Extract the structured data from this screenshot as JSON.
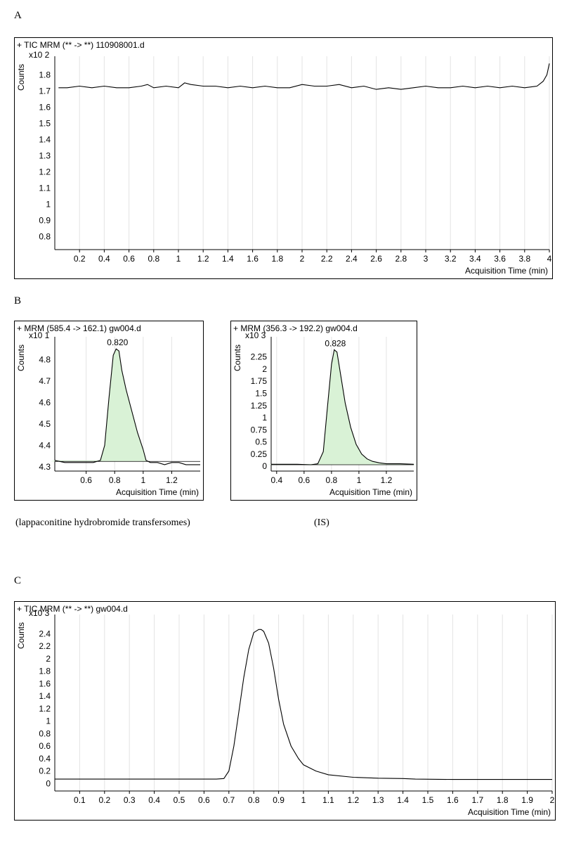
{
  "panels": {
    "A": {
      "letter": "A"
    },
    "B": {
      "letter": "B",
      "caption_left": "(lappaconitine hydrobromide transfersomes)",
      "caption_right": "(IS)"
    },
    "C": {
      "letter": "C"
    }
  },
  "chart_data": [
    {
      "id": "A",
      "type": "line",
      "title": "+ TIC MRM (** -> **) 110908001.d",
      "ylabel": "Counts",
      "yscale_label": "x10 2",
      "xlabel": "Acquisition Time (min)",
      "xlim": [
        0,
        4.0
      ],
      "ylim": [
        0.72,
        1.88
      ],
      "xticks": [
        0.2,
        0.4,
        0.6,
        0.8,
        1,
        1.2,
        1.4,
        1.6,
        1.8,
        2,
        2.2,
        2.4,
        2.6,
        2.8,
        3,
        3.2,
        3.4,
        3.6,
        3.8,
        4
      ],
      "xtick_labels": [
        "0.2",
        "0.4",
        "0.6",
        "0.8",
        "1",
        "1.2",
        "1.4",
        "1.6",
        "1.8",
        "2",
        "2.2",
        "2.4",
        "2.6",
        "2.8",
        "3",
        "3.2",
        "3.4",
        "3.6",
        "3.8",
        "4"
      ],
      "yticks": [
        0.8,
        0.9,
        1,
        1.1,
        1.2,
        1.3,
        1.4,
        1.5,
        1.6,
        1.7,
        1.8
      ],
      "ytick_labels": [
        "0.8",
        "0.9",
        "1",
        "1.1",
        "1.2",
        "1.3",
        "1.4",
        "1.5",
        "1.6",
        "1.7",
        "1.8"
      ],
      "grid": true,
      "x": [
        0.03,
        0.1,
        0.2,
        0.3,
        0.4,
        0.5,
        0.6,
        0.7,
        0.75,
        0.8,
        0.9,
        1.0,
        1.05,
        1.1,
        1.2,
        1.3,
        1.4,
        1.5,
        1.6,
        1.7,
        1.8,
        1.9,
        2.0,
        2.1,
        2.2,
        2.3,
        2.4,
        2.5,
        2.6,
        2.7,
        2.8,
        2.9,
        3.0,
        3.1,
        3.2,
        3.3,
        3.4,
        3.5,
        3.6,
        3.7,
        3.8,
        3.9,
        3.95,
        3.98,
        4.0
      ],
      "values": [
        1.72,
        1.72,
        1.73,
        1.72,
        1.73,
        1.72,
        1.72,
        1.73,
        1.74,
        1.72,
        1.73,
        1.72,
        1.75,
        1.74,
        1.73,
        1.73,
        1.72,
        1.73,
        1.72,
        1.73,
        1.72,
        1.72,
        1.74,
        1.73,
        1.73,
        1.74,
        1.72,
        1.73,
        1.71,
        1.72,
        1.71,
        1.72,
        1.73,
        1.72,
        1.72,
        1.73,
        1.72,
        1.73,
        1.72,
        1.73,
        1.72,
        1.73,
        1.76,
        1.8,
        1.87
      ]
    },
    {
      "id": "B1",
      "type": "area",
      "title": "+ MRM (585.4 -> 162.1) gw004.d",
      "ylabel": "Counts",
      "yscale_label": "x10 1",
      "xlabel": "Acquisition Time (min)",
      "xlim": [
        0.38,
        1.4
      ],
      "ylim": [
        4.28,
        4.88
      ],
      "xticks": [
        0.6,
        0.8,
        1,
        1.2
      ],
      "xtick_labels": [
        "0.6",
        "0.8",
        "1",
        "1.2"
      ],
      "yticks": [
        4.3,
        4.4,
        4.5,
        4.6,
        4.7,
        4.8
      ],
      "ytick_labels": [
        "4.3",
        "4.4",
        "4.5",
        "4.6",
        "4.7",
        "4.8"
      ],
      "grid": true,
      "peak_label": "0.820",
      "peak_x": 0.82,
      "peak_y": 4.85,
      "baseline": 4.325,
      "x": [
        0.38,
        0.45,
        0.55,
        0.65,
        0.7,
        0.73,
        0.76,
        0.79,
        0.81,
        0.83,
        0.85,
        0.88,
        0.92,
        0.96,
        1.0,
        1.02,
        1.05,
        1.1,
        1.15,
        1.2,
        1.25,
        1.3,
        1.35,
        1.4
      ],
      "values": [
        4.33,
        4.32,
        4.32,
        4.32,
        4.33,
        4.4,
        4.62,
        4.82,
        4.85,
        4.84,
        4.75,
        4.66,
        4.56,
        4.46,
        4.38,
        4.33,
        4.32,
        4.32,
        4.31,
        4.32,
        4.32,
        4.31,
        4.31,
        4.31
      ]
    },
    {
      "id": "B2",
      "type": "area",
      "title": "+ MRM (356.3 -> 192.2) gw004.d",
      "ylabel": "Counts",
      "yscale_label": "x10 3",
      "xlabel": "Acquisition Time (min)",
      "xlim": [
        0.36,
        1.4
      ],
      "ylim": [
        -0.1,
        2.55
      ],
      "xticks": [
        0.4,
        0.6,
        0.8,
        1,
        1.2
      ],
      "xtick_labels": [
        "0.4",
        "0.6",
        "0.8",
        "1",
        "1.2"
      ],
      "yticks": [
        0,
        0.25,
        0.5,
        0.75,
        1,
        1.25,
        1.5,
        1.75,
        2,
        2.25
      ],
      "ytick_labels": [
        "0",
        "0.25",
        "0.5",
        "0.75",
        "1",
        "1.25",
        "1.5",
        "1.75",
        "2",
        "2.25"
      ],
      "grid": true,
      "peak_label": "0.828",
      "peak_x": 0.828,
      "peak_y": 2.4,
      "baseline": 0.03,
      "x": [
        0.36,
        0.45,
        0.55,
        0.65,
        0.7,
        0.74,
        0.77,
        0.8,
        0.82,
        0.84,
        0.86,
        0.9,
        0.94,
        0.98,
        1.02,
        1.06,
        1.1,
        1.15,
        1.2,
        1.3,
        1.4
      ],
      "values": [
        0.04,
        0.04,
        0.04,
        0.03,
        0.05,
        0.3,
        1.2,
        2.1,
        2.4,
        2.35,
        2.0,
        1.3,
        0.8,
        0.45,
        0.25,
        0.15,
        0.1,
        0.07,
        0.05,
        0.05,
        0.04
      ]
    },
    {
      "id": "C",
      "type": "line",
      "title": "+ TIC MRM (** -> **) gw004.d",
      "ylabel": "Counts",
      "yscale_label": "x10 3",
      "xlabel": "Acquisition Time (min)",
      "xlim": [
        0,
        2.0
      ],
      "ylim": [
        -0.12,
        2.62
      ],
      "xticks": [
        0.1,
        0.2,
        0.3,
        0.4,
        0.5,
        0.6,
        0.7,
        0.8,
        0.9,
        1,
        1.1,
        1.2,
        1.3,
        1.4,
        1.5,
        1.6,
        1.7,
        1.8,
        1.9,
        2
      ],
      "xtick_labels": [
        "0.1",
        "0.2",
        "0.3",
        "0.4",
        "0.5",
        "0.6",
        "0.7",
        "0.8",
        "0.9",
        "1",
        "1.1",
        "1.2",
        "1.3",
        "1.4",
        "1.5",
        "1.6",
        "1.7",
        "1.8",
        "1.9",
        "2"
      ],
      "yticks": [
        0,
        0.2,
        0.4,
        0.6,
        0.8,
        1,
        1.2,
        1.4,
        1.6,
        1.8,
        2,
        2.2,
        2.4
      ],
      "ytick_labels": [
        "0",
        "0.2",
        "0.4",
        "0.6",
        "0.8",
        "1",
        "1.2",
        "1.4",
        "1.6",
        "1.8",
        "2",
        "2.2",
        "2.4"
      ],
      "grid": true,
      "x": [
        0.0,
        0.1,
        0.3,
        0.5,
        0.65,
        0.68,
        0.7,
        0.72,
        0.74,
        0.76,
        0.78,
        0.8,
        0.82,
        0.83,
        0.84,
        0.86,
        0.88,
        0.9,
        0.92,
        0.95,
        0.98,
        1.0,
        1.05,
        1.1,
        1.2,
        1.3,
        1.4,
        1.45,
        1.6,
        1.8,
        2.0
      ],
      "values": [
        0.07,
        0.07,
        0.07,
        0.07,
        0.07,
        0.08,
        0.2,
        0.6,
        1.15,
        1.7,
        2.15,
        2.42,
        2.47,
        2.47,
        2.44,
        2.25,
        1.85,
        1.35,
        0.95,
        0.6,
        0.4,
        0.3,
        0.2,
        0.14,
        0.1,
        0.085,
        0.08,
        0.07,
        0.065,
        0.065,
        0.065
      ]
    }
  ]
}
